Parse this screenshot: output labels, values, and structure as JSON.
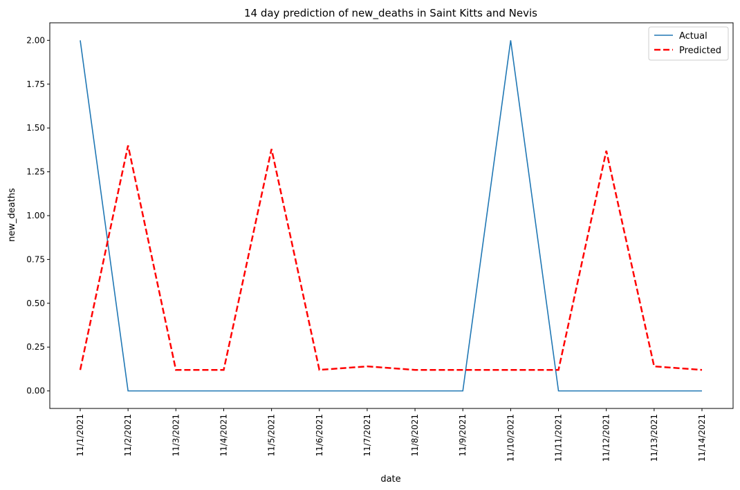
{
  "chart_data": {
    "type": "line",
    "title": "14 day prediction of new_deaths in Saint Kitts and Nevis",
    "xlabel": "date",
    "ylabel": "new_deaths",
    "categories": [
      "11/1/2021",
      "11/2/2021",
      "11/3/2021",
      "11/4/2021",
      "11/5/2021",
      "11/6/2021",
      "11/7/2021",
      "11/8/2021",
      "11/9/2021",
      "11/10/2021",
      "11/11/2021",
      "11/12/2021",
      "11/13/2021",
      "11/14/2021"
    ],
    "ylim": [
      -0.1,
      2.1
    ],
    "yticks": [
      0.0,
      0.25,
      0.5,
      0.75,
      1.0,
      1.25,
      1.5,
      1.75,
      2.0
    ],
    "ytick_labels": [
      "0.00",
      "0.25",
      "0.50",
      "0.75",
      "1.00",
      "1.25",
      "1.50",
      "1.75",
      "2.00"
    ],
    "grid": false,
    "legend_position": "top-right",
    "series": [
      {
        "name": "Actual",
        "color": "#1f77b4",
        "style": "solid",
        "values": [
          2,
          0,
          0,
          0,
          0,
          0,
          0,
          0,
          0,
          2,
          0,
          0,
          0,
          0
        ]
      },
      {
        "name": "Predicted",
        "color": "#ff0000",
        "style": "dashed",
        "values": [
          0.12,
          1.4,
          0.12,
          0.12,
          1.38,
          0.12,
          0.14,
          0.12,
          0.12,
          0.12,
          0.12,
          1.37,
          0.14,
          0.12
        ]
      }
    ]
  }
}
